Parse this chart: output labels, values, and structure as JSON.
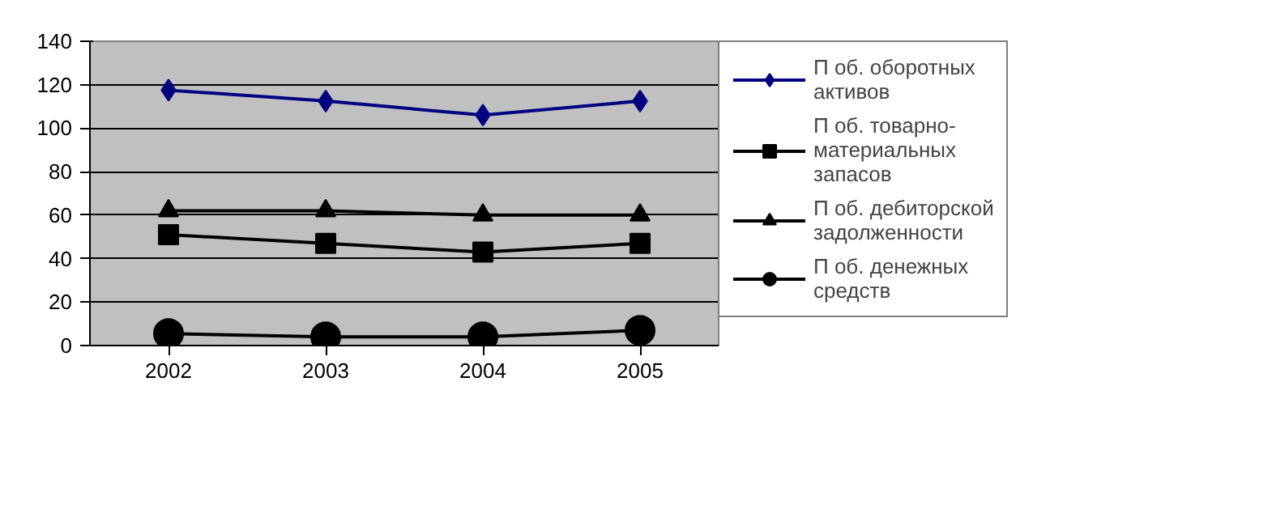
{
  "chart_data": {
    "type": "line",
    "categories": [
      "2002",
      "2003",
      "2004",
      "2005"
    ],
    "series": [
      {
        "name": "П об. оборотных активов",
        "color": "#000080",
        "marker": "diamond",
        "values": [
          117.5,
          112.5,
          106,
          112.5
        ]
      },
      {
        "name": "П об. товарно-материальных запасов",
        "color": "#000000",
        "marker": "square",
        "values": [
          51,
          47,
          43,
          47
        ]
      },
      {
        "name": "П об. дебиторской задолженности",
        "color": "#000000",
        "marker": "triangle",
        "values": [
          62,
          62,
          60,
          60
        ]
      },
      {
        "name": "П об. денежных средств",
        "color": "#000000",
        "marker": "circle",
        "values": [
          5.5,
          4,
          4,
          7
        ]
      }
    ],
    "ylim": [
      0,
      140
    ],
    "yticks": [
      0,
      20,
      40,
      60,
      80,
      100,
      120,
      140
    ],
    "grid": "y",
    "legend": "right"
  }
}
